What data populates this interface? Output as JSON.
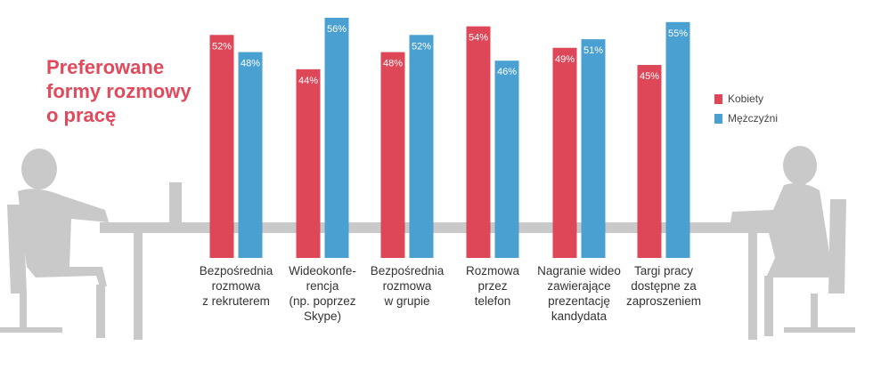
{
  "chart_data": {
    "type": "bar",
    "title_lines": [
      "Preferowane",
      "formy rozmowy",
      "o pracę"
    ],
    "categories": [
      [
        "Bezpośrednia",
        "rozmowa",
        "z rekruterem"
      ],
      [
        "Wideokonfe-",
        "rencja",
        "(np. poprzez",
        "Skype)"
      ],
      [
        "Bezpośrednia",
        "rozmowa",
        "w grupie"
      ],
      [
        "Rozmowa",
        "przez",
        "telefon"
      ],
      [
        "Nagranie wideo",
        "zawierające",
        "prezentację",
        "kandydata"
      ],
      [
        "Targi pracy",
        "dostępne za",
        "zaproszeniem"
      ]
    ],
    "series": [
      {
        "name": "Kobiety",
        "color": "#dd4758",
        "values": [
          52,
          44,
          48,
          54,
          49,
          45
        ],
        "labels": [
          "52%",
          "44%",
          "48%",
          "54%",
          "49%",
          "45%"
        ]
      },
      {
        "name": "Mężczyźni",
        "color": "#4aa0d0",
        "values": [
          48,
          56,
          52,
          46,
          51,
          55
        ],
        "labels": [
          "48%",
          "56%",
          "52%",
          "46%",
          "51%",
          "55%"
        ]
      }
    ],
    "ylim": [
      0,
      56
    ]
  }
}
